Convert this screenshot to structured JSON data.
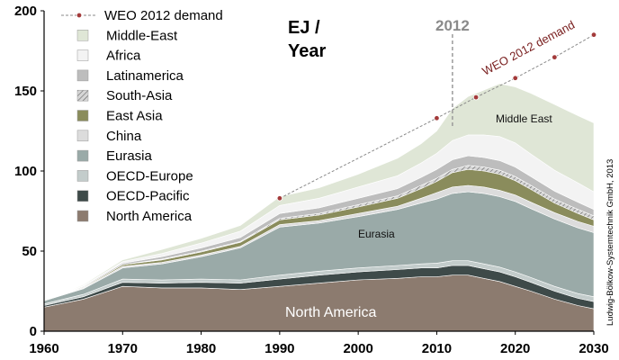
{
  "chart_data": {
    "type": "area",
    "stacked": true,
    "unit_label": [
      "EJ /",
      "Year"
    ],
    "x": [
      1960,
      1965,
      1970,
      1975,
      1980,
      1985,
      1990,
      1995,
      2000,
      2005,
      2008,
      2010,
      2012,
      2014,
      2016,
      2018,
      2020,
      2022,
      2025,
      2028,
      2030
    ],
    "xticks": [
      1960,
      1970,
      1980,
      1990,
      2000,
      2010,
      2020,
      2030
    ],
    "yticks": [
      0,
      50,
      100,
      150,
      200
    ],
    "xlim": [
      1960,
      2030
    ],
    "ylim": [
      0,
      200
    ],
    "series": [
      {
        "name": "North America",
        "color": "#8c7b6f",
        "values": [
          15,
          20,
          28,
          27,
          27,
          26,
          28,
          30,
          32,
          33,
          34,
          34,
          35,
          35,
          33,
          31,
          28,
          25,
          20,
          16,
          14
        ]
      },
      {
        "name": "OECD-Pacific",
        "color": "#3e4a49",
        "values": [
          1,
          1.5,
          2.5,
          3,
          3.5,
          4,
          4.5,
          5,
          5,
          5.5,
          5.5,
          5.5,
          6,
          6,
          6,
          6,
          6,
          5.5,
          5,
          4.5,
          4.5
        ]
      },
      {
        "name": "OECD-Europe",
        "color": "#c3cccb",
        "values": [
          1,
          1.5,
          2,
          2,
          2,
          2,
          2.5,
          2.5,
          2.5,
          2.5,
          2.5,
          3,
          3,
          3,
          3,
          3,
          3,
          3,
          3,
          3,
          3
        ]
      },
      {
        "name": "Eurasia",
        "color": "#9aaaa8",
        "values": [
          2,
          3.5,
          7,
          10,
          14,
          20,
          30,
          30,
          32,
          35,
          38,
          40,
          42,
          43,
          44,
          44,
          44,
          43,
          42,
          41,
          40
        ]
      },
      {
        "name": "China",
        "color": "#dcdcdc",
        "values": [
          0,
          0.5,
          1,
          1,
          1,
          1,
          1.5,
          1.5,
          2,
          2,
          3,
          4,
          4,
          4,
          4,
          4,
          4,
          4,
          4,
          4,
          4
        ]
      },
      {
        "name": "East Asia",
        "color": "#8a8c5c",
        "values": [
          0,
          0.5,
          1,
          1.5,
          2,
          2.5,
          3,
          3.5,
          4,
          5,
          6,
          7,
          9,
          10,
          10,
          10,
          9,
          8,
          6,
          5,
          4
        ]
      },
      {
        "name": "South-Asia",
        "color": "#b3b3b3",
        "hatched": true,
        "values": [
          0,
          0,
          0,
          0.5,
          0.5,
          0.5,
          1,
          1,
          1.5,
          1.5,
          2,
          2,
          2,
          2.5,
          2.5,
          2.5,
          2.5,
          2.5,
          2.5,
          2.5,
          2.5
        ]
      },
      {
        "name": "Latinamerica",
        "color": "#bdbdbd",
        "values": [
          0,
          0.5,
          1,
          1.5,
          2,
          2.5,
          3,
          3.5,
          4,
          4.5,
          5,
          5.5,
          6,
          6,
          6,
          6,
          6,
          5.5,
          5,
          4.5,
          4
        ]
      },
      {
        "name": "Africa",
        "color": "#f3f3f3",
        "values": [
          0,
          0.5,
          1,
          2,
          3,
          4,
          5,
          6,
          7,
          8,
          9,
          10,
          12,
          13,
          14,
          15,
          15,
          14,
          13,
          12,
          11
        ]
      },
      {
        "name": "Middle-East",
        "color": "#dfe6d6",
        "values": [
          0,
          0.5,
          1,
          2.5,
          3,
          3.5,
          5.5,
          6.5,
          8,
          11,
          12,
          14,
          20,
          24,
          28,
          33,
          35,
          38,
          41,
          42,
          43
        ]
      }
    ],
    "weo_demand": {
      "name": "WEO 2012 demand",
      "x": [
        1990,
        2010,
        2015,
        2020,
        2025,
        2030
      ],
      "y": [
        83,
        133,
        146,
        158,
        171,
        185
      ]
    },
    "annotations": {
      "year_2012": "2012",
      "weo_label": "WEO 2012 demand",
      "middle_east": "Middle East",
      "eurasia": "Eurasia",
      "north_america": "North America"
    },
    "credit": "Ludwig-Bölkow-Systemtechnik GmbH, 2013"
  }
}
